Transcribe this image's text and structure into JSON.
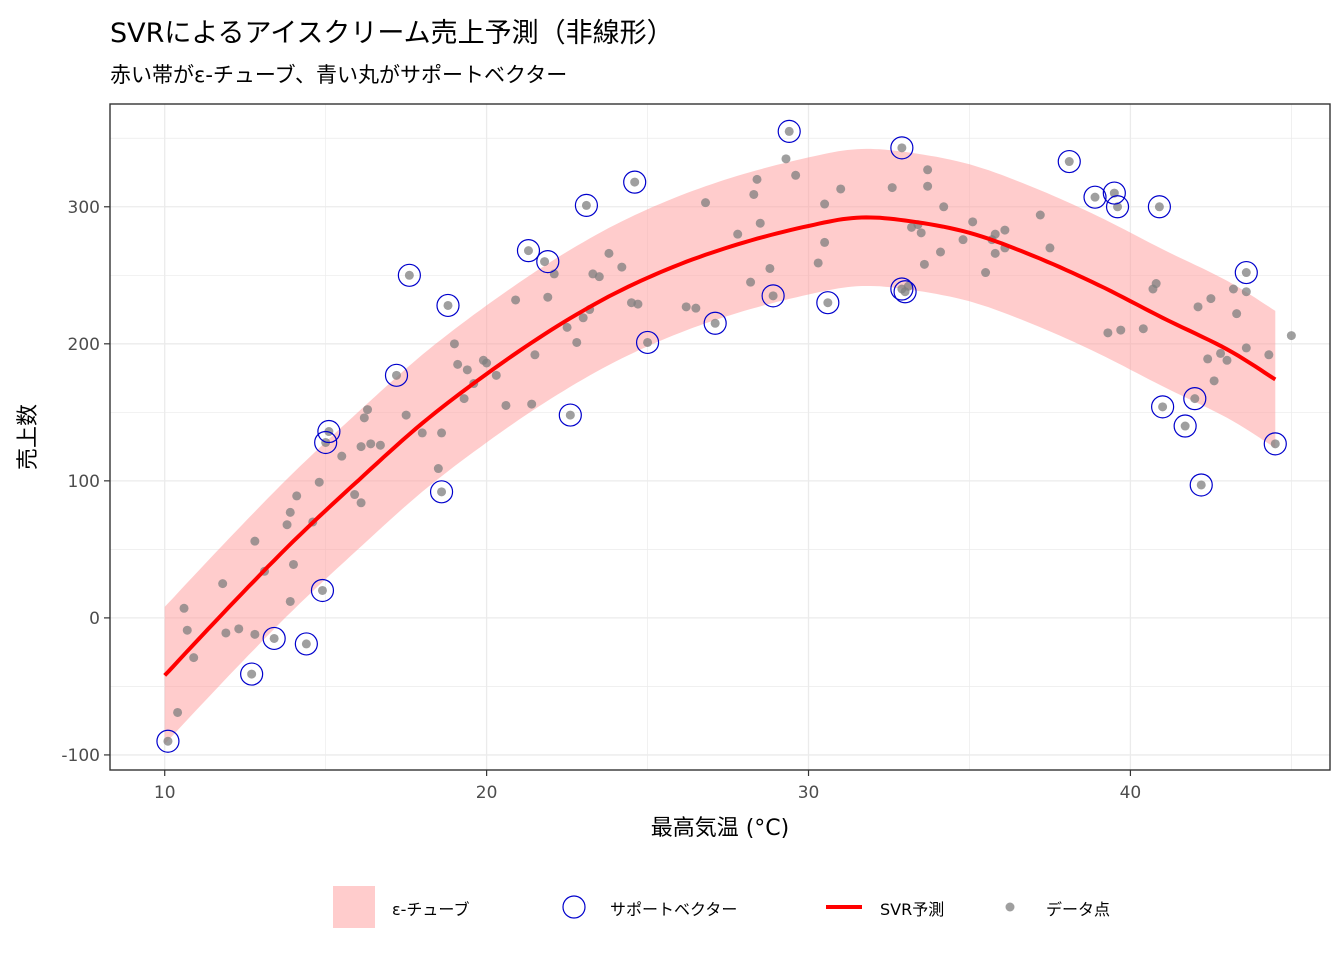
{
  "chart_data": {
    "type": "scatter",
    "title": "SVRによるアイスクリーム売上予測（非線形）",
    "subtitle": "赤い帯がε-チューブ、青い丸がサポートベクター",
    "xlabel": "最高気温 (°C)",
    "ylabel": "売上数",
    "xlim": [
      8.3,
      46.2
    ],
    "ylim": [
      -111,
      375
    ],
    "xticks": [
      10,
      20,
      30,
      40
    ],
    "yticks": [
      -100,
      0,
      100,
      200,
      300
    ],
    "grid": true,
    "legend_position": "bottom",
    "legend": [
      {
        "key": "tube",
        "label": "ε-チューブ"
      },
      {
        "key": "sv",
        "label": "サポートベクター"
      },
      {
        "key": "pred",
        "label": "SVR予測"
      },
      {
        "key": "pt",
        "label": "データ点"
      }
    ],
    "colors": {
      "tube": "#ff9999",
      "prediction": "#ff0000",
      "support_vector": "#0000cc",
      "point": "#7f7f7f",
      "grid": "#ebebeb"
    },
    "epsilon": 50,
    "prediction": {
      "x": [
        10,
        12,
        14,
        16,
        18,
        20,
        22,
        24,
        26,
        28,
        30,
        31.5,
        33,
        35,
        37,
        39,
        41,
        43,
        44.5
      ],
      "y": [
        -42,
        8,
        56,
        100,
        142,
        178,
        210,
        237,
        258,
        274,
        286,
        292,
        290,
        281,
        264,
        243,
        219,
        196,
        174
      ]
    },
    "points": [
      [
        10.1,
        -90
      ],
      [
        10.4,
        -69
      ],
      [
        10.6,
        7
      ],
      [
        10.7,
        -9
      ],
      [
        10.9,
        -29
      ],
      [
        11.8,
        25
      ],
      [
        11.9,
        -11
      ],
      [
        12.3,
        -8
      ],
      [
        12.7,
        -41
      ],
      [
        12.8,
        -12
      ],
      [
        12.8,
        56
      ],
      [
        13.1,
        34
      ],
      [
        13.4,
        -15
      ],
      [
        13.8,
        68
      ],
      [
        13.9,
        12
      ],
      [
        13.9,
        77
      ],
      [
        14.0,
        39
      ],
      [
        14.1,
        89
      ],
      [
        14.4,
        -19
      ],
      [
        14.6,
        70
      ],
      [
        14.8,
        99
      ],
      [
        14.9,
        20
      ],
      [
        15.0,
        128
      ],
      [
        15.1,
        136
      ],
      [
        15.5,
        118
      ],
      [
        15.9,
        90
      ],
      [
        16.1,
        84
      ],
      [
        16.1,
        125
      ],
      [
        16.2,
        146
      ],
      [
        16.3,
        152
      ],
      [
        16.4,
        127
      ],
      [
        16.7,
        126
      ],
      [
        17.2,
        177
      ],
      [
        17.5,
        148
      ],
      [
        17.6,
        250
      ],
      [
        18.0,
        135
      ],
      [
        18.5,
        109
      ],
      [
        18.6,
        92
      ],
      [
        18.6,
        135
      ],
      [
        18.8,
        228
      ],
      [
        19.0,
        200
      ],
      [
        19.1,
        185
      ],
      [
        19.3,
        160
      ],
      [
        19.4,
        181
      ],
      [
        19.6,
        171
      ],
      [
        19.9,
        188
      ],
      [
        20.0,
        186
      ],
      [
        20.3,
        177
      ],
      [
        20.6,
        155
      ],
      [
        20.9,
        232
      ],
      [
        21.3,
        268
      ],
      [
        21.4,
        156
      ],
      [
        21.5,
        192
      ],
      [
        21.8,
        260
      ],
      [
        21.9,
        234
      ],
      [
        22.1,
        251
      ],
      [
        22.5,
        212
      ],
      [
        22.6,
        148
      ],
      [
        22.8,
        201
      ],
      [
        23.0,
        219
      ],
      [
        23.1,
        301
      ],
      [
        23.2,
        225
      ],
      [
        23.3,
        251
      ],
      [
        23.5,
        249
      ],
      [
        23.8,
        266
      ],
      [
        24.2,
        256
      ],
      [
        24.5,
        230
      ],
      [
        24.6,
        318
      ],
      [
        24.7,
        229
      ],
      [
        25.0,
        201
      ],
      [
        26.2,
        227
      ],
      [
        26.5,
        226
      ],
      [
        26.8,
        303
      ],
      [
        27.1,
        215
      ],
      [
        27.8,
        280
      ],
      [
        28.2,
        245
      ],
      [
        28.3,
        309
      ],
      [
        28.4,
        320
      ],
      [
        28.5,
        288
      ],
      [
        28.8,
        255
      ],
      [
        28.9,
        235
      ],
      [
        29.3,
        335
      ],
      [
        29.4,
        355
      ],
      [
        29.6,
        323
      ],
      [
        30.3,
        259
      ],
      [
        30.5,
        274
      ],
      [
        30.5,
        302
      ],
      [
        30.6,
        230
      ],
      [
        31.0,
        313
      ],
      [
        32.6,
        314
      ],
      [
        32.9,
        343
      ],
      [
        32.9,
        240
      ],
      [
        33.0,
        238
      ],
      [
        33.1,
        242
      ],
      [
        33.2,
        285
      ],
      [
        33.4,
        287
      ],
      [
        33.5,
        281
      ],
      [
        33.6,
        258
      ],
      [
        33.7,
        315
      ],
      [
        33.7,
        327
      ],
      [
        34.1,
        267
      ],
      [
        34.2,
        300
      ],
      [
        34.8,
        276
      ],
      [
        35.1,
        289
      ],
      [
        35.5,
        252
      ],
      [
        35.7,
        276
      ],
      [
        35.8,
        266
      ],
      [
        35.8,
        280
      ],
      [
        36.1,
        270
      ],
      [
        36.1,
        283
      ],
      [
        37.2,
        294
      ],
      [
        37.5,
        270
      ],
      [
        38.1,
        333
      ],
      [
        38.9,
        307
      ],
      [
        39.3,
        208
      ],
      [
        39.5,
        310
      ],
      [
        39.6,
        300
      ],
      [
        39.7,
        210
      ],
      [
        40.4,
        211
      ],
      [
        40.7,
        240
      ],
      [
        40.8,
        244
      ],
      [
        40.9,
        300
      ],
      [
        41.0,
        154
      ],
      [
        41.7,
        140
      ],
      [
        42.0,
        160
      ],
      [
        42.1,
        227
      ],
      [
        42.2,
        97
      ],
      [
        42.4,
        189
      ],
      [
        42.5,
        233
      ],
      [
        42.6,
        173
      ],
      [
        42.8,
        193
      ],
      [
        43.0,
        188
      ],
      [
        43.2,
        240
      ],
      [
        43.3,
        222
      ],
      [
        43.6,
        252
      ],
      [
        43.6,
        238
      ],
      [
        43.6,
        197
      ],
      [
        44.3,
        192
      ],
      [
        44.5,
        127
      ],
      [
        45.0,
        206
      ]
    ],
    "support_vectors": [
      [
        10.1,
        -90
      ],
      [
        12.7,
        -41
      ],
      [
        13.4,
        -15
      ],
      [
        14.4,
        -19
      ],
      [
        14.9,
        20
      ],
      [
        15.0,
        128
      ],
      [
        15.1,
        136
      ],
      [
        17.2,
        177
      ],
      [
        17.6,
        250
      ],
      [
        18.6,
        92
      ],
      [
        18.8,
        228
      ],
      [
        21.3,
        268
      ],
      [
        21.9,
        260
      ],
      [
        22.6,
        148
      ],
      [
        23.1,
        301
      ],
      [
        24.6,
        318
      ],
      [
        25.0,
        201
      ],
      [
        27.1,
        215
      ],
      [
        28.9,
        235
      ],
      [
        29.4,
        355
      ],
      [
        30.6,
        230
      ],
      [
        32.9,
        343
      ],
      [
        32.9,
        240
      ],
      [
        33.0,
        238
      ],
      [
        38.1,
        333
      ],
      [
        38.9,
        307
      ],
      [
        39.5,
        310
      ],
      [
        39.6,
        300
      ],
      [
        40.9,
        300
      ],
      [
        41.0,
        154
      ],
      [
        41.7,
        140
      ],
      [
        42.0,
        160
      ],
      [
        42.2,
        97
      ],
      [
        43.6,
        252
      ],
      [
        44.5,
        127
      ]
    ]
  }
}
